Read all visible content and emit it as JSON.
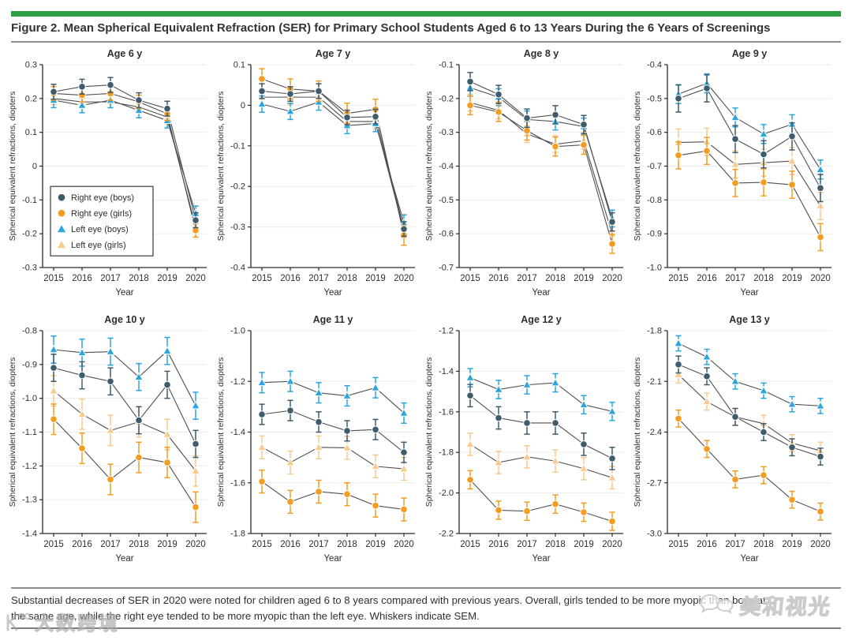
{
  "page": {
    "figure_label": "Figure 2. Mean Spherical Equivalent Refraction (SER) for Primary School Students Aged 6 to 13 Years During the 6 Years of Screenings",
    "caption_lines": [
      "Substantial decreases of SER in 2020 were noted for children aged 6 to 8 years compared with previous years. Overall, girls tended to be more myopic than boys at",
      "the same age, while the right eye tended to be more myopic than the left eye. Whiskers indicate SEM."
    ],
    "watermark_left": "大数跨境",
    "watermark_right": "美和视光"
  },
  "colors": {
    "accent_green": "#2F9E45",
    "right_eye_boys": "#3E5C6B",
    "right_eye_girls": "#F39C1E",
    "left_eye_boys": "#2AA5DE",
    "left_eye_girls": "#F9C98E",
    "connector_line": "#4f4f4f",
    "gridline": "#ebebeb",
    "axis": "#2b2b2b"
  },
  "legend": [
    "Right eye (boys)",
    "Right eye (girls)",
    "Left eye (boys)",
    "Left eye (girls)"
  ],
  "chart_data": [
    {
      "type": "line",
      "title": "Age 6 y",
      "xlabel": "Year",
      "ylabel": "Spherical equivalent refractions, diopters",
      "x": [
        2015,
        2016,
        2017,
        2018,
        2019,
        2020
      ],
      "ylim": [
        -0.3,
        0.3
      ],
      "ytick_labels": [
        "0.3",
        "0.2",
        "0.1",
        "0",
        "-0.1",
        "-0.2",
        "-0.3"
      ],
      "legend_visible": true,
      "legend_position": "inside-left",
      "series": [
        {
          "name": "Right eye (boys)",
          "marker": "circle",
          "color": "#3E5C6B",
          "sem": 0.022,
          "values": [
            0.22,
            0.235,
            0.24,
            0.195,
            0.17,
            -0.16
          ]
        },
        {
          "name": "Right eye (girls)",
          "marker": "circle",
          "color": "#F39C1E",
          "sem": 0.02,
          "values": [
            0.215,
            0.21,
            0.215,
            0.19,
            0.155,
            -0.19
          ]
        },
        {
          "name": "Left eye (boys)",
          "marker": "triangle",
          "color": "#2AA5DE",
          "sem": 0.022,
          "values": [
            0.195,
            0.18,
            0.195,
            0.165,
            0.135,
            -0.14
          ]
        },
        {
          "name": "Left eye (girls)",
          "marker": "triangle",
          "color": "#F9C98E",
          "sem": 0.018,
          "values": [
            0.2,
            0.19,
            0.19,
            0.175,
            0.145,
            -0.18
          ]
        }
      ]
    },
    {
      "type": "line",
      "title": "Age 7 y",
      "xlabel": "Year",
      "ylabel": "Spherical equivalent refractions, diopters",
      "x": [
        2015,
        2016,
        2017,
        2018,
        2019,
        2020
      ],
      "ylim": [
        -0.4,
        0.1
      ],
      "ytick_labels": [
        "0.1",
        "0",
        "-0.1",
        "-0.2",
        "-0.3",
        "-0.4"
      ],
      "legend_visible": false,
      "series": [
        {
          "name": "Right eye (boys)",
          "marker": "circle",
          "color": "#3E5C6B",
          "sem": 0.018,
          "values": [
            0.035,
            0.028,
            0.035,
            -0.03,
            -0.028,
            -0.305
          ]
        },
        {
          "name": "Right eye (girls)",
          "marker": "circle",
          "color": "#F39C1E",
          "sem": 0.025,
          "values": [
            0.065,
            0.04,
            0.035,
            -0.02,
            -0.01,
            -0.32
          ]
        },
        {
          "name": "Left eye (boys)",
          "marker": "triangle",
          "color": "#2AA5DE",
          "sem": 0.02,
          "values": [
            0.003,
            -0.015,
            0.008,
            -0.05,
            -0.045,
            -0.29
          ]
        },
        {
          "name": "Left eye (girls)",
          "marker": "triangle",
          "color": "#F9C98E",
          "sem": 0.018,
          "values": [
            0.02,
            0.02,
            0.02,
            -0.04,
            -0.04,
            -0.31
          ]
        }
      ]
    },
    {
      "type": "line",
      "title": "Age 8 y",
      "xlabel": "Year",
      "ylabel": "Spherical equivalent refractions, diopters",
      "x": [
        2015,
        2016,
        2017,
        2018,
        2019,
        2020
      ],
      "ylim": [
        -0.7,
        -0.1
      ],
      "ytick_labels": [
        "-0.1",
        "-0.2",
        "-0.3",
        "-0.4",
        "-0.5",
        "-0.6",
        "-0.7"
      ],
      "legend_visible": false,
      "series": [
        {
          "name": "Right eye (boys)",
          "marker": "circle",
          "color": "#3E5C6B",
          "sem": 0.027,
          "values": [
            -0.15,
            -0.188,
            -0.258,
            -0.248,
            -0.277,
            -0.565
          ]
        },
        {
          "name": "Right eye (girls)",
          "marker": "circle",
          "color": "#F39C1E",
          "sem": 0.028,
          "values": [
            -0.22,
            -0.24,
            -0.295,
            -0.342,
            -0.337,
            -0.63
          ]
        },
        {
          "name": "Left eye (boys)",
          "marker": "triangle",
          "color": "#2AA5DE",
          "sem": 0.025,
          "values": [
            -0.168,
            -0.196,
            -0.262,
            -0.268,
            -0.283,
            -0.555
          ]
        },
        {
          "name": "Left eye (girls)",
          "marker": "triangle",
          "color": "#F9C98E",
          "sem": 0.025,
          "values": [
            -0.212,
            -0.235,
            -0.305,
            -0.335,
            -0.325,
            -0.6
          ]
        }
      ]
    },
    {
      "type": "line",
      "title": "Age 9 y",
      "xlabel": "Year",
      "ylabel": "Spherical equivalent refractions, diopters",
      "x": [
        2015,
        2016,
        2017,
        2018,
        2019,
        2020
      ],
      "ylim": [
        -1.0,
        -0.4
      ],
      "ytick_labels": [
        "-0.4",
        "-0.5",
        "-0.6",
        "-0.7",
        "-0.8",
        "-0.9",
        "-1.0"
      ],
      "legend_visible": false,
      "series": [
        {
          "name": "Right eye (boys)",
          "marker": "circle",
          "color": "#3E5C6B",
          "sem": 0.04,
          "values": [
            -0.5,
            -0.47,
            -0.62,
            -0.665,
            -0.612,
            -0.765
          ]
        },
        {
          "name": "Right eye (girls)",
          "marker": "circle",
          "color": "#F39C1E",
          "sem": 0.04,
          "values": [
            -0.668,
            -0.655,
            -0.75,
            -0.748,
            -0.755,
            -0.91
          ]
        },
        {
          "name": "Left eye (boys)",
          "marker": "triangle",
          "color": "#2AA5DE",
          "sem": 0.028,
          "values": [
            -0.487,
            -0.455,
            -0.556,
            -0.605,
            -0.576,
            -0.71
          ]
        },
        {
          "name": "Left eye (girls)",
          "marker": "triangle",
          "color": "#F9C98E",
          "sem": 0.04,
          "values": [
            -0.63,
            -0.628,
            -0.695,
            -0.69,
            -0.685,
            -0.818
          ]
        }
      ]
    },
    {
      "type": "line",
      "title": "Age 10 y",
      "xlabel": "Year",
      "ylabel": "Spherical equivalent refractions, diopters",
      "x": [
        2015,
        2016,
        2017,
        2018,
        2019,
        2020
      ],
      "ylim": [
        -1.4,
        -0.8
      ],
      "ytick_labels": [
        "-0.8",
        "-0.9",
        "-1.0",
        "-1.1",
        "-1.2",
        "-1.3",
        "-1.4"
      ],
      "legend_visible": false,
      "series": [
        {
          "name": "Right eye (boys)",
          "marker": "circle",
          "color": "#3E5C6B",
          "sem": 0.04,
          "values": [
            -0.91,
            -0.932,
            -0.95,
            -1.065,
            -0.96,
            -1.135
          ]
        },
        {
          "name": "Right eye (girls)",
          "marker": "circle",
          "color": "#F39C1E",
          "sem": 0.045,
          "values": [
            -1.062,
            -1.148,
            -1.24,
            -1.175,
            -1.19,
            -1.322
          ]
        },
        {
          "name": "Left eye (boys)",
          "marker": "triangle",
          "color": "#2AA5DE",
          "sem": 0.04,
          "values": [
            -0.856,
            -0.865,
            -0.862,
            -0.937,
            -0.86,
            -1.022
          ]
        },
        {
          "name": "Left eye (girls)",
          "marker": "triangle",
          "color": "#F9C98E",
          "sem": 0.045,
          "values": [
            -0.978,
            -1.047,
            -1.095,
            -1.07,
            -1.107,
            -1.215
          ]
        }
      ]
    },
    {
      "type": "line",
      "title": "Age 11 y",
      "xlabel": "Year",
      "ylabel": "Spherical equivalent refractions, diopters",
      "x": [
        2015,
        2016,
        2017,
        2018,
        2019,
        2020
      ],
      "ylim": [
        -1.8,
        -1.0
      ],
      "ytick_labels": [
        "-1.0",
        "-1.2",
        "-1.4",
        "-1.6",
        "-1.8"
      ],
      "legend_visible": false,
      "series": [
        {
          "name": "Right eye (boys)",
          "marker": "circle",
          "color": "#3E5C6B",
          "sem": 0.04,
          "values": [
            -1.33,
            -1.315,
            -1.36,
            -1.395,
            -1.39,
            -1.48
          ]
        },
        {
          "name": "Right eye (girls)",
          "marker": "circle",
          "color": "#F39C1E",
          "sem": 0.045,
          "values": [
            -1.595,
            -1.675,
            -1.635,
            -1.645,
            -1.69,
            -1.705
          ]
        },
        {
          "name": "Left eye (boys)",
          "marker": "triangle",
          "color": "#2AA5DE",
          "sem": 0.04,
          "values": [
            -1.205,
            -1.2,
            -1.245,
            -1.257,
            -1.225,
            -1.325
          ]
        },
        {
          "name": "Left eye (girls)",
          "marker": "triangle",
          "color": "#F9C98E",
          "sem": 0.045,
          "values": [
            -1.46,
            -1.52,
            -1.46,
            -1.462,
            -1.535,
            -1.545
          ]
        }
      ]
    },
    {
      "type": "line",
      "title": "Age 12 y",
      "xlabel": "Year",
      "ylabel": "Spherical equivalent refractions, diopters",
      "x": [
        2015,
        2016,
        2017,
        2018,
        2019,
        2020
      ],
      "ylim": [
        -2.2,
        -1.2
      ],
      "ytick_labels": [
        "-1.2",
        "-1.4",
        "-1.6",
        "-1.8",
        "-2.0",
        "-2.2"
      ],
      "legend_visible": false,
      "series": [
        {
          "name": "Right eye (boys)",
          "marker": "circle",
          "color": "#3E5C6B",
          "sem": 0.055,
          "values": [
            -1.52,
            -1.63,
            -1.655,
            -1.655,
            -1.76,
            -1.83
          ]
        },
        {
          "name": "Right eye (girls)",
          "marker": "circle",
          "color": "#F39C1E",
          "sem": 0.045,
          "values": [
            -1.935,
            -2.085,
            -2.09,
            -2.055,
            -2.095,
            -2.14
          ]
        },
        {
          "name": "Left eye (boys)",
          "marker": "triangle",
          "color": "#2AA5DE",
          "sem": 0.045,
          "values": [
            -1.432,
            -1.49,
            -1.467,
            -1.457,
            -1.565,
            -1.598
          ]
        },
        {
          "name": "Left eye (girls)",
          "marker": "triangle",
          "color": "#F9C98E",
          "sem": 0.055,
          "values": [
            -1.76,
            -1.85,
            -1.822,
            -1.843,
            -1.88,
            -1.925
          ]
        }
      ]
    },
    {
      "type": "line",
      "title": "Age 13 y",
      "xlabel": "Year",
      "ylabel": "Spherical equivalent refractions, diopters",
      "x": [
        2015,
        2016,
        2017,
        2018,
        2019,
        2020
      ],
      "ylim": [
        -3.0,
        -1.8
      ],
      "ytick_labels": [
        "-1.8",
        "-2.1",
        "-2.4",
        "-2.7",
        "-3.0"
      ],
      "legend_visible": false,
      "series": [
        {
          "name": "Right eye (boys)",
          "marker": "circle",
          "color": "#3E5C6B",
          "sem": 0.05,
          "values": [
            -2.0,
            -2.07,
            -2.31,
            -2.4,
            -2.49,
            -2.545
          ]
        },
        {
          "name": "Right eye (girls)",
          "marker": "circle",
          "color": "#F39C1E",
          "sem": 0.05,
          "values": [
            -2.32,
            -2.5,
            -2.68,
            -2.655,
            -2.8,
            -2.87
          ]
        },
        {
          "name": "Left eye (boys)",
          "marker": "triangle",
          "color": "#2AA5DE",
          "sem": 0.045,
          "values": [
            -1.875,
            -1.955,
            -2.1,
            -2.155,
            -2.235,
            -2.245
          ]
        },
        {
          "name": "Left eye (girls)",
          "marker": "triangle",
          "color": "#F9C98E",
          "sem": 0.05,
          "values": [
            -2.06,
            -2.22,
            -2.31,
            -2.35,
            -2.465,
            -2.51
          ]
        }
      ]
    }
  ]
}
